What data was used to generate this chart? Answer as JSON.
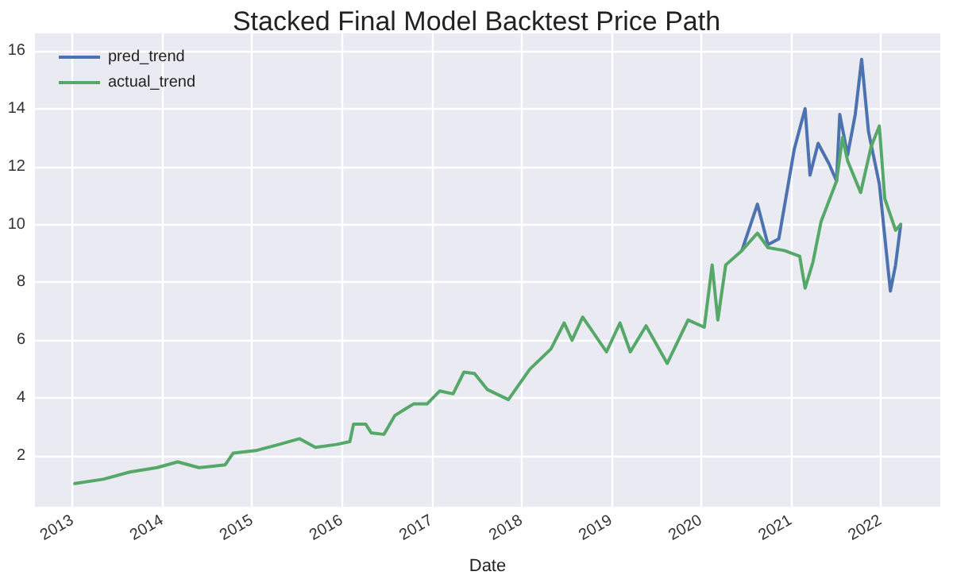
{
  "chart_data": {
    "type": "line",
    "title": "Stacked Final Model Backtest Price Path",
    "xlabel": "Date",
    "xlim": [
      "2012-08-01",
      "2022-09-01"
    ],
    "xticks": [
      "2013",
      "2014",
      "2015",
      "2016",
      "2017",
      "2018",
      "2019",
      "2020",
      "2021",
      "2022"
    ],
    "ylim": [
      0.25,
      16.6
    ],
    "yticks": [
      2,
      4,
      6,
      8,
      10,
      12,
      14,
      16
    ],
    "grid": true,
    "legend": "top left",
    "marker": "none",
    "line_style": "solid",
    "series": [
      {
        "name": "pred_trend",
        "color": "#4c72b0",
        "x": [
          "2020-06-16",
          "2020-08-18",
          "2020-09-30",
          "2020-11-13",
          "2021-01-15",
          "2021-02-28",
          "2021-03-20",
          "2021-04-22",
          "2021-06-05",
          "2021-07-06",
          "2021-07-19",
          "2021-08-20",
          "2021-09-20",
          "2021-10-16",
          "2021-11-13",
          "2021-12-27",
          "2022-02-10",
          "2022-03-03",
          "2022-03-24"
        ],
        "values": [
          9.1,
          10.7,
          9.3,
          9.5,
          12.6,
          14.0,
          11.7,
          12.8,
          12.1,
          11.5,
          13.8,
          12.4,
          13.8,
          15.7,
          13.2,
          11.4,
          7.7,
          8.6,
          10.0
        ]
      },
      {
        "name": "actual_trend",
        "color": "#55a868",
        "x": [
          "2013-01-10",
          "2013-05-06",
          "2013-08-22",
          "2013-12-10",
          "2014-03-05",
          "2014-05-30",
          "2014-09-14",
          "2014-10-16",
          "2015-01-22",
          "2015-04-20",
          "2015-07-13",
          "2015-09-16",
          "2015-12-10",
          "2016-02-03",
          "2016-02-18",
          "2016-04-08",
          "2016-04-30",
          "2016-06-21",
          "2016-08-04",
          "2016-10-19",
          "2016-12-13",
          "2017-02-03",
          "2017-03-29",
          "2017-05-12",
          "2017-06-24",
          "2017-08-15",
          "2017-11-09",
          "2018-02-04",
          "2018-05-01",
          "2018-06-24",
          "2018-07-26",
          "2018-09-07",
          "2018-12-13",
          "2019-02-06",
          "2019-03-20",
          "2019-05-23",
          "2019-08-17",
          "2019-11-10",
          "2020-01-15",
          "2020-02-16",
          "2020-03-10",
          "2020-04-11",
          "2020-06-16",
          "2020-08-18",
          "2020-09-30",
          "2020-12-05",
          "2021-02-06",
          "2021-02-28",
          "2021-04-01",
          "2021-05-04",
          "2021-07-06",
          "2021-07-30",
          "2021-08-20",
          "2021-10-12",
          "2021-11-24",
          "2021-12-27",
          "2022-01-18",
          "2022-03-03",
          "2022-03-24"
        ],
        "values": [
          1.05,
          1.2,
          1.45,
          1.6,
          1.8,
          1.6,
          1.7,
          2.1,
          2.2,
          2.4,
          2.6,
          2.3,
          2.4,
          2.5,
          3.1,
          3.1,
          2.8,
          2.75,
          3.4,
          3.8,
          3.8,
          4.25,
          4.15,
          4.9,
          4.85,
          4.3,
          3.95,
          5.0,
          5.7,
          6.6,
          6.0,
          6.8,
          5.6,
          6.6,
          5.6,
          6.5,
          5.2,
          6.7,
          6.45,
          8.6,
          6.7,
          8.6,
          9.1,
          9.7,
          9.2,
          9.1,
          8.9,
          7.8,
          8.7,
          10.1,
          11.5,
          13.0,
          12.2,
          11.1,
          12.7,
          13.4,
          10.9,
          9.8,
          10.0
        ]
      }
    ]
  }
}
